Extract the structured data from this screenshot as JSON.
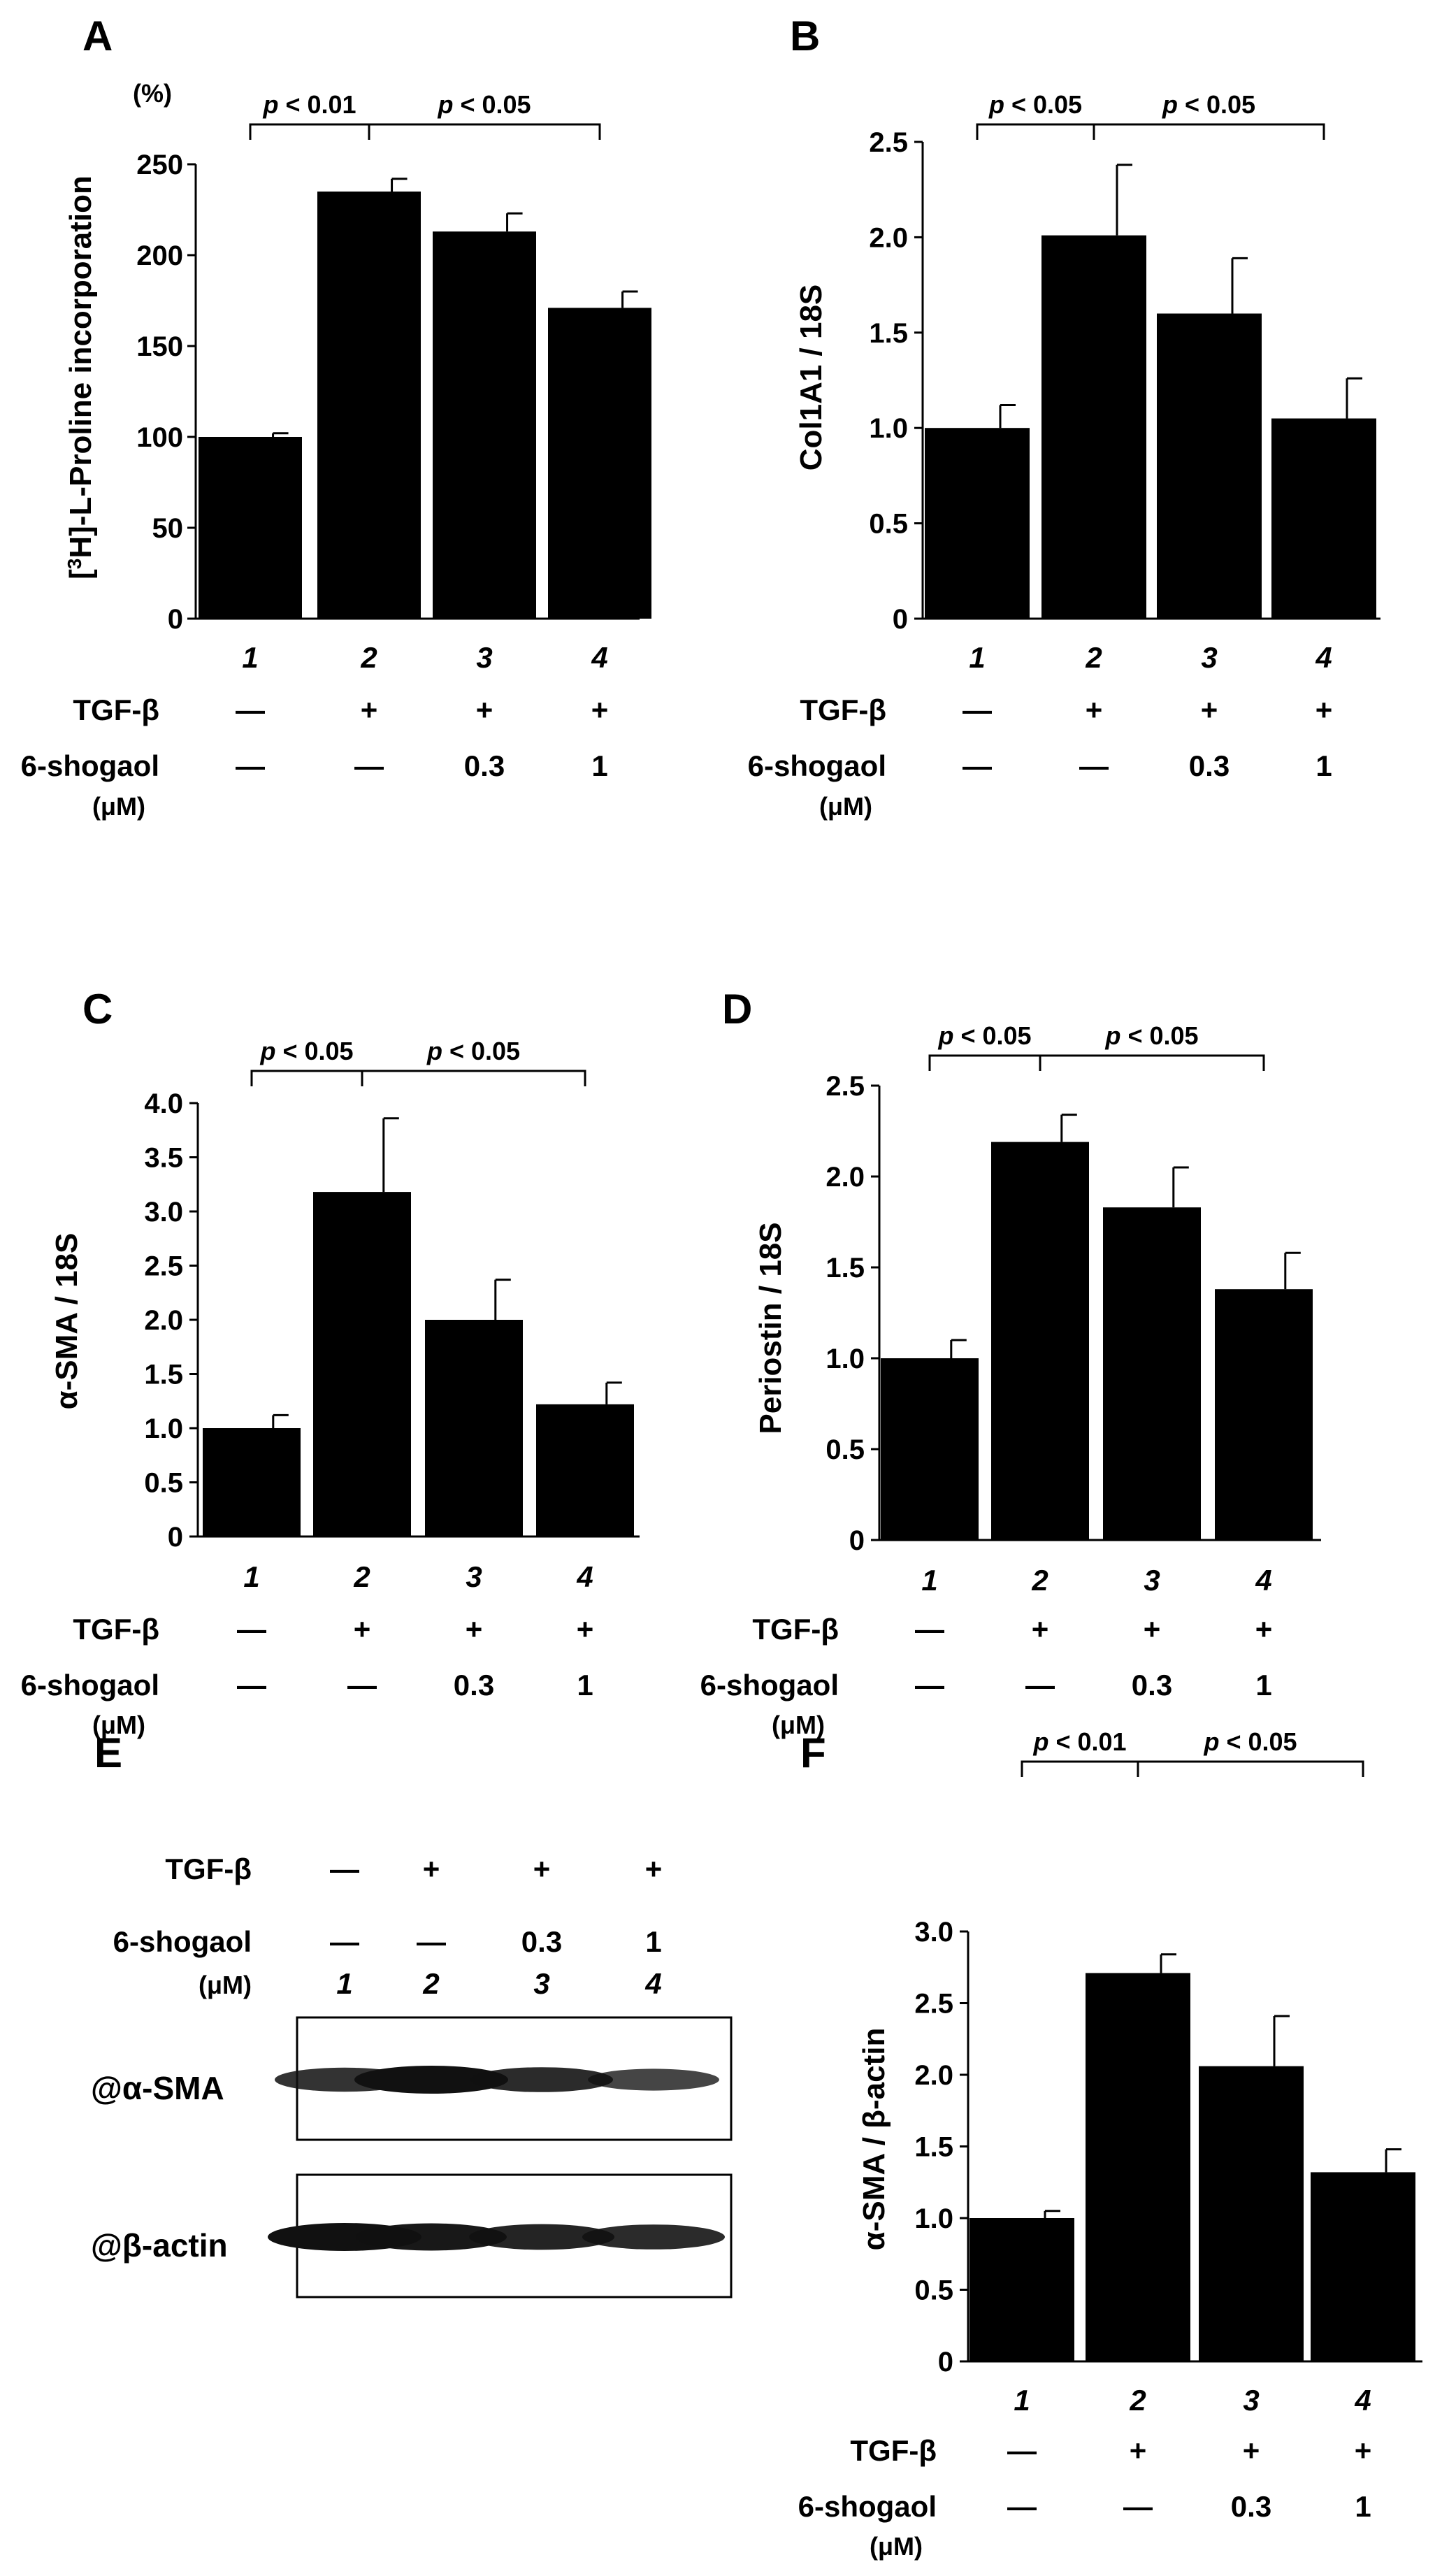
{
  "chart_data": [
    {
      "panel": "A",
      "type": "bar",
      "categories": [
        "1",
        "2",
        "3",
        "4"
      ],
      "values": [
        100,
        235,
        213,
        171
      ],
      "errors": [
        2,
        7,
        10,
        9
      ],
      "ylabel": "[3H]-L-Proline incorporation",
      "ylabel_main": "H]-L-Proline  incorporation",
      "ylabel_open": "[",
      "ylabel_sup": "3",
      "yunit": "(%)",
      "ylim": [
        0,
        250
      ],
      "yticks": [
        "0",
        "50",
        "100",
        "150",
        "200",
        "250"
      ],
      "comparisons": [
        {
          "from": 0,
          "to": 1,
          "label": "< 0.01"
        },
        {
          "from": 1,
          "to": 3,
          "label": "< 0.05"
        }
      ],
      "bar_color": "#000000"
    },
    {
      "panel": "B",
      "type": "bar",
      "categories": [
        "1",
        "2",
        "3",
        "4"
      ],
      "values": [
        1.0,
        2.01,
        1.6,
        1.05
      ],
      "errors": [
        0.12,
        0.37,
        0.29,
        0.21
      ],
      "ylabel": "Col1A1 / 18S",
      "ylim": [
        0,
        2.5
      ],
      "yticks": [
        "0",
        "0.5",
        "1.0",
        "1.5",
        "2.0",
        "2.5"
      ],
      "comparisons": [
        {
          "from": 0,
          "to": 1,
          "label": "< 0.05"
        },
        {
          "from": 1,
          "to": 3,
          "label": "< 0.05"
        }
      ],
      "bar_color": "#000000"
    },
    {
      "panel": "C",
      "type": "bar",
      "categories": [
        "1",
        "2",
        "3",
        "4"
      ],
      "values": [
        1.0,
        3.18,
        2.0,
        1.22
      ],
      "errors": [
        0.12,
        0.68,
        0.37,
        0.2
      ],
      "ylabel": "α-SMA / 18S",
      "ylim": [
        0,
        4.0
      ],
      "yticks": [
        "0",
        "0.5",
        "1.0",
        "1.5",
        "2.0",
        "2.5",
        "3.0",
        "3.5",
        "4.0"
      ],
      "comparisons": [
        {
          "from": 0,
          "to": 1,
          "label": "< 0.05"
        },
        {
          "from": 1,
          "to": 3,
          "label": "< 0.05"
        }
      ],
      "bar_color": "#000000"
    },
    {
      "panel": "D",
      "type": "bar",
      "categories": [
        "1",
        "2",
        "3",
        "4"
      ],
      "values": [
        1.0,
        2.19,
        1.83,
        1.38
      ],
      "errors": [
        0.1,
        0.15,
        0.22,
        0.2
      ],
      "ylabel": "Periostin / 18S",
      "ylim": [
        0,
        2.5
      ],
      "yticks": [
        "0",
        "0.5",
        "1.0",
        "1.5",
        "2.0",
        "2.5"
      ],
      "comparisons": [
        {
          "from": 0,
          "to": 1,
          "label": "< 0.05"
        },
        {
          "from": 1,
          "to": 3,
          "label": "< 0.05"
        }
      ],
      "bar_color": "#000000"
    },
    {
      "panel": "F",
      "type": "bar",
      "categories": [
        "1",
        "2",
        "3",
        "4"
      ],
      "values": [
        1.0,
        2.71,
        2.06,
        1.32
      ],
      "errors": [
        0.05,
        0.13,
        0.35,
        0.16
      ],
      "ylabel": "α-SMA / β-actin",
      "ylim": [
        0,
        3.0
      ],
      "yticks": [
        "0",
        "0.5",
        "1.0",
        "1.5",
        "2.0",
        "2.5",
        "3.0"
      ],
      "comparisons": [
        {
          "from": 0,
          "to": 1,
          "label": "< 0.01"
        },
        {
          "from": 1,
          "to": 3,
          "label": "< 0.05"
        }
      ],
      "bar_color": "#000000"
    }
  ],
  "conditions": {
    "tgf_label": "TGF-β",
    "tgf_values": [
      "—",
      "+",
      "+",
      "+"
    ],
    "shogaol_label": "6-shogaol",
    "shogaol_unit": "(μM)",
    "shogaol_values": [
      "—",
      "—",
      "0.3",
      "1"
    ],
    "p_symbol": "p"
  },
  "blot": {
    "panel": "E",
    "lanes": [
      "1",
      "2",
      "3",
      "4"
    ],
    "rows": [
      {
        "label": "@α-SMA",
        "intensities": [
          0.75,
          1.0,
          0.8,
          0.6
        ]
      },
      {
        "label": "@β-actin",
        "intensities": [
          1.0,
          0.95,
          0.85,
          0.8
        ]
      }
    ]
  }
}
